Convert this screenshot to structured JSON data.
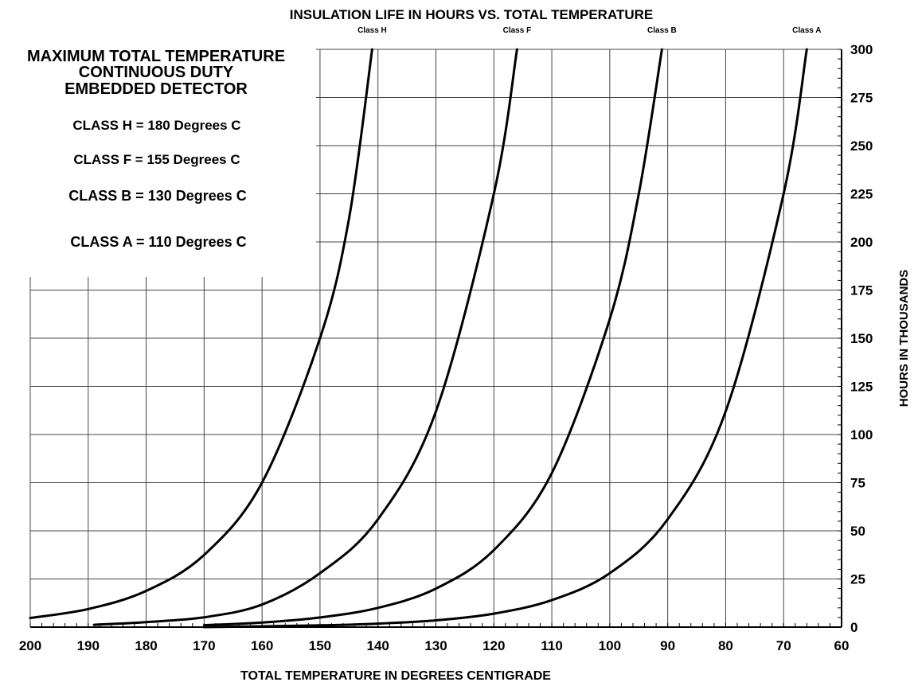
{
  "chart_data": {
    "type": "line",
    "title": "INSULATION LIFE IN HOURS VS. TOTAL TEMPERATURE",
    "xlabel": "TOTAL TEMPERATURE IN DEGREES CENTIGRADE",
    "ylabel": "HOURS IN THOUSANDS",
    "xlim": [
      200,
      60
    ],
    "ylim": [
      0,
      300
    ],
    "x_reversed": true,
    "grid": true,
    "x_ticks": [
      "200",
      "190",
      "180",
      "170",
      "160",
      "150",
      "140",
      "130",
      "120",
      "110",
      "100",
      "90",
      "80",
      "70",
      "60"
    ],
    "y_ticks": [
      "0",
      "25",
      "50",
      "75",
      "100",
      "125",
      "150",
      "175",
      "200",
      "225",
      "250",
      "275",
      "300"
    ],
    "series": [
      {
        "name": "Class H",
        "points": [
          [
            200,
            4.7
          ],
          [
            190,
            9.4
          ],
          [
            180,
            18.8
          ],
          [
            170,
            37.5
          ],
          [
            160,
            75
          ],
          [
            150,
            150
          ],
          [
            145,
            212
          ],
          [
            141,
            300
          ]
        ]
      },
      {
        "name": "Class F",
        "points": [
          [
            189,
            1.2
          ],
          [
            180,
            2.6
          ],
          [
            170,
            5.1
          ],
          [
            160,
            11.7
          ],
          [
            150,
            28
          ],
          [
            140,
            56
          ],
          [
            130,
            112
          ],
          [
            120,
            225
          ],
          [
            116,
            300
          ]
        ]
      },
      {
        "name": "Class B",
        "points": [
          [
            170,
            1
          ],
          [
            160,
            2.4
          ],
          [
            150,
            5
          ],
          [
            140,
            10
          ],
          [
            130,
            20
          ],
          [
            120,
            40
          ],
          [
            110,
            80
          ],
          [
            100,
            160
          ],
          [
            95,
            225
          ],
          [
            91,
            300
          ]
        ]
      },
      {
        "name": "Class A",
        "points": [
          [
            170,
            0
          ],
          [
            160,
            0.4
          ],
          [
            150,
            0.9
          ],
          [
            140,
            1.8
          ],
          [
            130,
            3.5
          ],
          [
            120,
            7
          ],
          [
            110,
            14
          ],
          [
            100,
            28
          ],
          [
            90,
            56
          ],
          [
            80,
            112
          ],
          [
            70,
            225
          ],
          [
            66,
            300
          ]
        ]
      }
    ],
    "legend": {
      "heading": [
        "MAXIMUM TOTAL TEMPERATURE",
        "CONTINUOUS DUTY",
        "EMBEDDED DETECTOR"
      ],
      "items": [
        "CLASS H = 180 Degrees C",
        "CLASS F = 155 Degrees C",
        "CLASS B = 130 Degrees C",
        "CLASS A = 110 Degrees C"
      ]
    }
  }
}
